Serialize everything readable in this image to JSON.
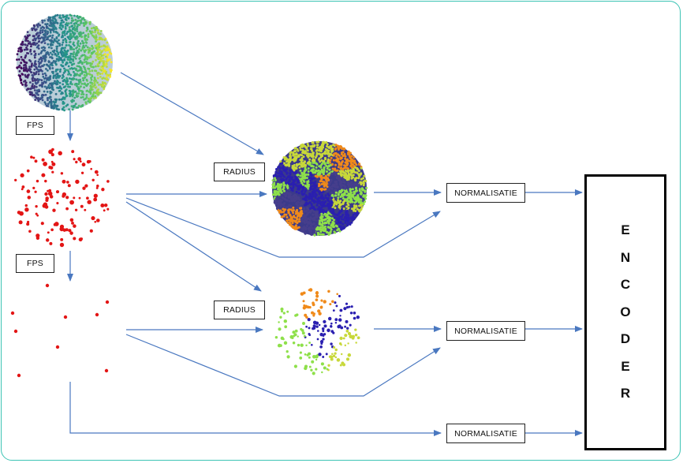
{
  "labels": {
    "fps_1": "FPS",
    "fps_2": "FPS",
    "radius_1": "RADIUS",
    "radius_2": "RADIUS",
    "norm_1": "NORMALISATIE",
    "norm_2": "NORMALISATIE",
    "norm_3": "NORMALISATIE",
    "encoder": "ENCODER"
  },
  "colors": {
    "arrow": "#4a78c0",
    "fps_points": "#e31515",
    "cluster_palette": [
      "#2a1fb0",
      "#8ee04a",
      "#f08a1a",
      "#463e8c",
      "#c8d83a"
    ],
    "viridis": [
      "#440154",
      "#3b528b",
      "#21918c",
      "#5ec962",
      "#fde725"
    ],
    "frame_border": "#3cc3b4"
  },
  "icons": {
    "input_cloud": "viridis-sphere-point-cloud",
    "fps_cloud_1": "red-sampled-points",
    "fps_cloud_2": "red-sparse-points",
    "radius_cloud_1": "dense-clustered-sphere",
    "radius_cloud_2": "sparse-clustered-sphere"
  }
}
